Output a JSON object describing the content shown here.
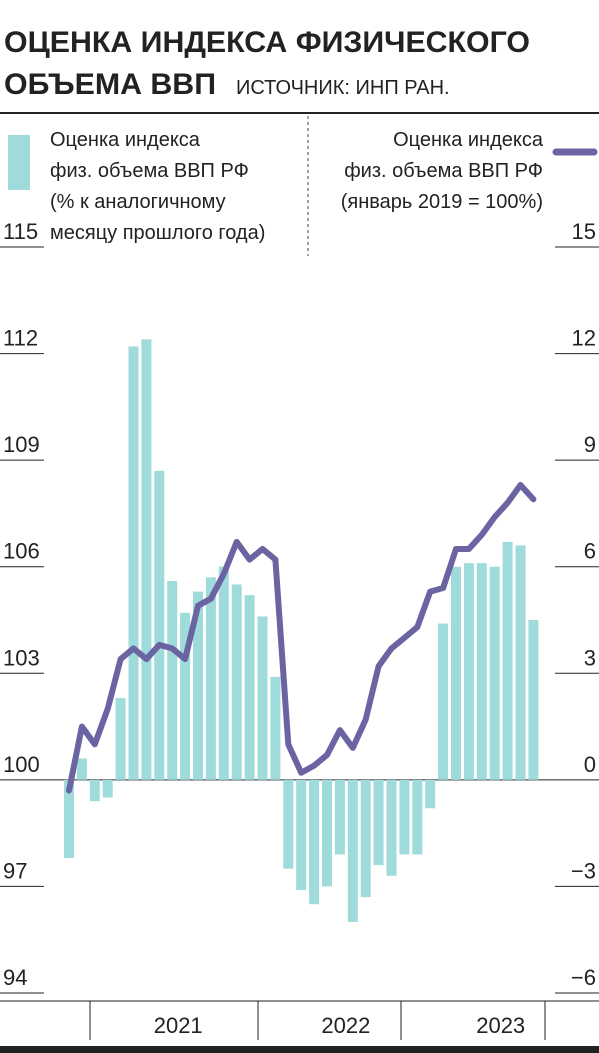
{
  "chart_data": {
    "type": "bar-line",
    "title": "ОЦЕНКА ИНДЕКСА ФИЗИЧЕСКОГО ОБЪЕМА ВВП",
    "source": "ИСТОЧНИК: ИНП РАН.",
    "categories": [
      null,
      null,
      null,
      null,
      null,
      null,
      null,
      null,
      "2021",
      null,
      null,
      null,
      null,
      null,
      null,
      null,
      null,
      null,
      null,
      null,
      null,
      "2022",
      null,
      null,
      null,
      null,
      null,
      null,
      null,
      null,
      null,
      null,
      null,
      "2023",
      null,
      null,
      null
    ],
    "series": [
      {
        "name": "Оценка индекса\nфиз. объема ВВП РФ\n(% к аналогичному\nмесяцу прошлого года)",
        "type": "bar",
        "color": "#9fdbdb",
        "values": [
          97.8,
          100.6,
          99.4,
          99.5,
          102.3,
          112.2,
          112.4,
          108.7,
          105.6,
          104.7,
          105.3,
          105.7,
          106.0,
          105.5,
          105.2,
          104.6,
          102.9,
          97.5,
          96.9,
          96.5,
          97.0,
          97.9,
          96.0,
          96.7,
          97.6,
          97.3,
          97.9,
          97.9,
          99.2,
          104.4,
          106.0,
          106.1,
          106.1,
          106.0,
          106.7,
          106.6,
          104.5
        ]
      },
      {
        "name": "Оценка индекса\nфиз. объема ВВП РФ\n(январь 2019 = 100%)",
        "type": "line",
        "axis": "y2",
        "color": "#6b64a2",
        "values": [
          -0.3,
          1.5,
          1.0,
          2.0,
          3.4,
          3.7,
          3.4,
          3.8,
          3.7,
          3.4,
          4.9,
          5.1,
          5.8,
          6.7,
          6.2,
          6.5,
          6.2,
          1.0,
          0.2,
          0.4,
          0.7,
          1.4,
          0.9,
          1.7,
          3.2,
          3.7,
          4.0,
          4.3,
          5.3,
          5.4,
          6.5,
          6.5,
          6.9,
          7.4,
          7.8,
          8.3,
          7.9
        ]
      }
    ],
    "ylim": [
      94,
      115
    ],
    "yticks": [
      94,
      97,
      100,
      103,
      106,
      109,
      112,
      115
    ],
    "y2lim": [
      -6,
      15
    ],
    "y2ticks": [
      {
        "value": -6,
        "label": "−6"
      },
      {
        "value": -3,
        "label": "−3"
      },
      0,
      3,
      6,
      9,
      12,
      15
    ],
    "baseline": 100
  }
}
